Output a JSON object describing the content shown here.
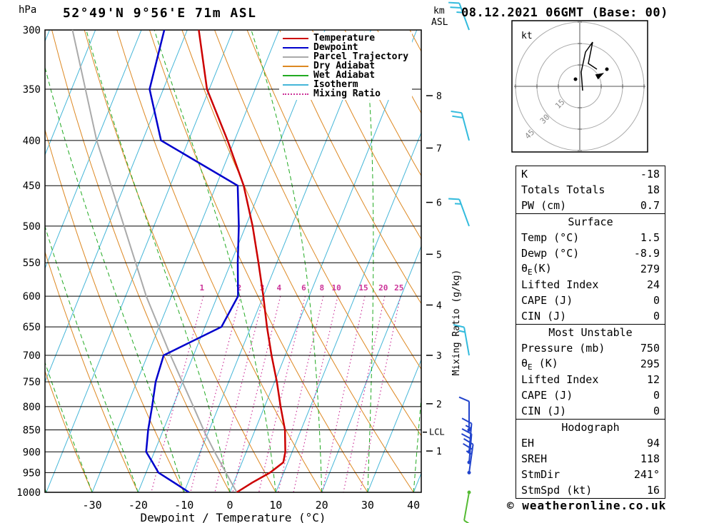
{
  "header": {
    "station_title": "52°49'N 9°56'E 71m ASL",
    "date_title": "08.12.2021 06GMT (Base: 00)"
  },
  "footer": {
    "copyright": "© weatheronline.co.uk"
  },
  "legend": {
    "items": [
      {
        "label": "Temperature",
        "color": "#cc0000",
        "dash": false
      },
      {
        "label": "Dewpoint",
        "color": "#0000cc",
        "dash": false
      },
      {
        "label": "Parcel Trajectory",
        "color": "#aaaaaa",
        "dash": false
      },
      {
        "label": "Dry Adiabat",
        "color": "#dd8822",
        "dash": false
      },
      {
        "label": "Wet Adiabat",
        "color": "#22aa22",
        "dash": false
      },
      {
        "label": "Isotherm",
        "color": "#45b6d8",
        "dash": false
      },
      {
        "label": "Mixing Ratio",
        "color": "#cc3399",
        "dash": true
      }
    ]
  },
  "table": {
    "sections": [
      {
        "header": null,
        "rows": [
          [
            "K",
            "-18"
          ],
          [
            "Totals Totals",
            "18"
          ],
          [
            "PW (cm)",
            "0.7"
          ]
        ]
      },
      {
        "header": "Surface",
        "rows": [
          [
            "Temp (°C)",
            "1.5"
          ],
          [
            "Dewp (°C)",
            "-8.9"
          ],
          [
            "θE(K)",
            "279"
          ],
          [
            "Lifted Index",
            "24"
          ],
          [
            "CAPE (J)",
            "0"
          ],
          [
            "CIN (J)",
            "0"
          ]
        ]
      },
      {
        "header": "Most Unstable",
        "rows": [
          [
            "Pressure (mb)",
            "750"
          ],
          [
            "θE (K)",
            "295"
          ],
          [
            "Lifted Index",
            "12"
          ],
          [
            "CAPE (J)",
            "0"
          ],
          [
            "CIN (J)",
            "0"
          ]
        ]
      },
      {
        "header": "Hodograph",
        "rows": [
          [
            "EH",
            "94"
          ],
          [
            "SREH",
            "118"
          ],
          [
            "StmDir",
            "241°"
          ],
          [
            "StmSpd (kt)",
            "16"
          ]
        ]
      }
    ]
  },
  "chart_data": {
    "type": "skewt",
    "title": "52°49'N 9°56'E 71m ASL",
    "axes": {
      "pressure_unit": "hPa",
      "pressure_ticks": [
        300,
        350,
        400,
        450,
        500,
        550,
        600,
        650,
        700,
        750,
        800,
        850,
        900,
        950,
        1000
      ],
      "pressure_range": [
        300,
        1000
      ],
      "temperature_ticks": [
        -30,
        -20,
        -10,
        0,
        10,
        20,
        30,
        40
      ],
      "temperature_label": "Dewpoint / Temperature (°C)",
      "mixing_axis_label": "Mixing Ratio (g/kg)",
      "km_axis": {
        "label": [
          "km",
          "ASL"
        ],
        "ticks": [
          {
            "km": 8,
            "p": 356
          },
          {
            "km": 7,
            "p": 408
          },
          {
            "km": 6,
            "p": 470
          },
          {
            "km": 5,
            "p": 538
          },
          {
            "km": 4,
            "p": 614
          },
          {
            "km": 3,
            "p": 700
          },
          {
            "km": 2,
            "p": 794
          },
          {
            "km": 1,
            "p": 898
          }
        ],
        "lcl": {
          "label": "LCL",
          "p": 855
        }
      }
    },
    "sounding": {
      "pressure": [
        1000,
        975,
        950,
        925,
        900,
        850,
        800,
        750,
        700,
        650,
        600,
        550,
        500,
        450,
        400,
        350,
        300
      ],
      "temperature": [
        1.5,
        4.0,
        7.0,
        9.0,
        8.5,
        6.5,
        3.5,
        0.5,
        -3.0,
        -6.5,
        -10.0,
        -14.0,
        -18.5,
        -24.0,
        -31.5,
        -40.5,
        -47.5
      ],
      "dewpoint": [
        -8.9,
        -13.0,
        -17.3,
        -19.5,
        -21.8,
        -23.3,
        -24.5,
        -25.9,
        -26.5,
        -16.4,
        -15.5,
        -18.5,
        -21.5,
        -25.3,
        -46.0,
        -53.0,
        -55.0
      ]
    },
    "parcel": {
      "pressure": [
        1000,
        950,
        900,
        855,
        800,
        700,
        600,
        500,
        400,
        300
      ],
      "temperature": [
        1.5,
        -2.6,
        -6.9,
        -10.8,
        -15.5,
        -25.0,
        -35.5,
        -46.5,
        -60.0,
        -75.0
      ]
    },
    "mixing_ratio_lines": [
      1,
      2,
      3,
      4,
      6,
      8,
      10,
      15,
      20,
      25
    ],
    "wind_barbs": [
      {
        "p": 300,
        "speed_kt": 25,
        "rot": -20,
        "color": "#33bbdd",
        "dot": false
      },
      {
        "p": 400,
        "speed_kt": 20,
        "rot": -15,
        "color": "#33bbdd",
        "dot": false
      },
      {
        "p": 500,
        "speed_kt": 15,
        "rot": -20,
        "color": "#33bbdd",
        "dot": false
      },
      {
        "p": 700,
        "speed_kt": 15,
        "rot": -10,
        "color": "#33bbdd",
        "dot": false
      },
      {
        "p": 850,
        "speed_kt": 10,
        "rot": 0,
        "color": "#2244cc",
        "dot": true
      },
      {
        "p": 900,
        "speed_kt": 15,
        "rot": 5,
        "color": "#2244cc",
        "dot": true
      },
      {
        "p": 925,
        "speed_kt": 20,
        "rot": 5,
        "color": "#2244cc",
        "dot": true
      },
      {
        "p": 950,
        "speed_kt": 25,
        "rot": 8,
        "color": "#2244cc",
        "dot": true
      },
      {
        "p": 1000,
        "speed_kt": 10,
        "rot": -170,
        "color": "#55bb33",
        "dot": true
      }
    ],
    "hodograph": {
      "unit_label": "kt",
      "ring_labels": [
        15,
        30,
        45
      ],
      "trace_uv_kt": [
        [
          2,
          -3
        ],
        [
          1,
          10
        ],
        [
          4,
          24
        ],
        [
          9,
          31
        ],
        [
          6,
          16
        ],
        [
          12,
          12
        ]
      ],
      "dots": [
        [
          -3,
          5
        ],
        [
          19,
          12
        ]
      ],
      "storm_motion": {
        "dir_deg": 241,
        "speed_kt": 16
      }
    },
    "colors": {
      "temperature": "#cc0000",
      "dewpoint": "#0000cc",
      "parcel": "#aaaaaa",
      "dry_adiabat": "#dd8822",
      "wet_adiabat": "#22aa22",
      "isotherm": "#45b6d8",
      "mixing_ratio": "#cc3399",
      "grid": "#000000"
    }
  }
}
